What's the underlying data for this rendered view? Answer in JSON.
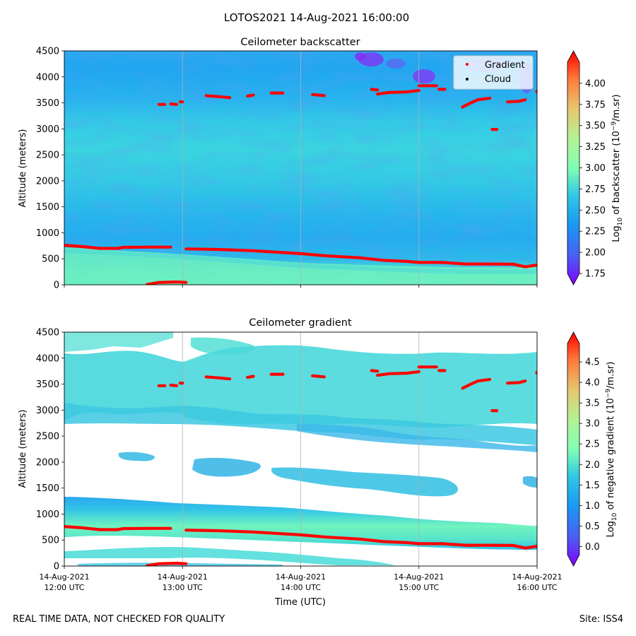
{
  "suptitle": "LOTOS2021 14-Aug-2021 16:00:00",
  "footer_left": "REAL TIME DATA, NOT CHECKED FOR QUALITY",
  "footer_right": "Site: ISS4",
  "chart_data": [
    {
      "type": "heatmap",
      "title": "Ceilometer backscatter",
      "xlabel": "",
      "ylabel": "Altitude (meters)",
      "ylim": [
        0,
        4500
      ],
      "yticks": [
        0,
        500,
        1000,
        1500,
        2000,
        2500,
        3000,
        3500,
        4000,
        4500
      ],
      "xlim_hours_utc": [
        12,
        16
      ],
      "xticks_hours_utc": [
        12,
        13,
        14,
        15,
        16
      ],
      "grid": "x",
      "legend": {
        "placement": "top-right",
        "entries": [
          "Gradient",
          "Cloud"
        ]
      },
      "colorbar": {
        "label_prefix": "Log",
        "label_sub": "10",
        "label_mid": " of backscatter (10",
        "label_sup": "−9",
        "label_suffix": "/m.sr)",
        "range": [
          1.75,
          4.25
        ],
        "ticks": [
          "1.75",
          "2.00",
          "2.25",
          "2.50",
          "2.75",
          "3.00",
          "3.25",
          "3.50",
          "3.75",
          "4.00"
        ],
        "extend": "both"
      }
    },
    {
      "type": "heatmap",
      "title": "Ceilometer gradient",
      "xlabel": "Time (UTC)",
      "ylabel": "Altitude (meters)",
      "ylim": [
        0,
        4500
      ],
      "yticks": [
        0,
        500,
        1000,
        1500,
        2000,
        2500,
        3000,
        3500,
        4000,
        4500
      ],
      "xlim_hours_utc": [
        12,
        16
      ],
      "xticks_hours_utc": [
        12,
        13,
        14,
        15,
        16
      ],
      "xtick_labels": [
        [
          "14-Aug-2021",
          "12:00 UTC"
        ],
        [
          "14-Aug-2021",
          "13:00 UTC"
        ],
        [
          "14-Aug-2021",
          "14:00 UTC"
        ],
        [
          "14-Aug-2021",
          "15:00 UTC"
        ],
        [
          "14-Aug-2021",
          "16:00 UTC"
        ]
      ],
      "grid": "x",
      "colorbar": {
        "label_prefix": "Log",
        "label_sub": "10",
        "label_mid": " of negative gradient (10",
        "label_sup": "−9",
        "label_suffix": "/m.sr)",
        "range": [
          -0.2,
          4.95
        ],
        "ticks": [
          "0.0",
          "0.5",
          "1.0",
          "1.5",
          "2.0",
          "2.5",
          "3.0",
          "3.5",
          "4.0",
          "4.5"
        ],
        "extend": "both"
      }
    }
  ],
  "gradient_series": {
    "name": "Gradient",
    "boundary_layer": [
      [
        12.0,
        760
      ],
      [
        12.15,
        735
      ],
      [
        12.3,
        700
      ],
      [
        12.45,
        700
      ],
      [
        12.5,
        720
      ],
      [
        12.7,
        725
      ],
      [
        12.9,
        725
      ]
    ],
    "boundary_layer_2": [
      [
        13.03,
        690
      ],
      [
        13.3,
        680
      ],
      [
        13.6,
        655
      ],
      [
        14.0,
        600
      ],
      [
        14.2,
        560
      ],
      [
        14.5,
        520
      ],
      [
        14.7,
        470
      ],
      [
        14.9,
        450
      ],
      [
        15.0,
        430
      ],
      [
        15.2,
        430
      ],
      [
        15.4,
        400
      ],
      [
        15.6,
        400
      ],
      [
        15.8,
        395
      ],
      [
        15.9,
        345
      ],
      [
        16.0,
        380
      ]
    ],
    "low_segment": [
      [
        12.7,
        5
      ],
      [
        12.8,
        45
      ],
      [
        12.95,
        55
      ],
      [
        13.03,
        45
      ]
    ],
    "upper_segments": [
      [
        [
          12.8,
          3470
        ],
        [
          12.85,
          3470
        ]
      ],
      [
        [
          12.9,
          3480
        ],
        [
          12.95,
          3470
        ]
      ],
      [
        [
          12.98,
          3520
        ],
        [
          13.0,
          3520
        ]
      ],
      [
        [
          13.2,
          3640
        ],
        [
          13.3,
          3620
        ],
        [
          13.4,
          3600
        ]
      ],
      [
        [
          13.55,
          3630
        ],
        [
          13.6,
          3650
        ]
      ],
      [
        [
          13.75,
          3690
        ],
        [
          13.85,
          3690
        ]
      ],
      [
        [
          14.1,
          3660
        ],
        [
          14.2,
          3640
        ]
      ],
      [
        [
          14.6,
          3760
        ],
        [
          14.65,
          3750
        ]
      ],
      [
        [
          14.65,
          3670
        ],
        [
          14.75,
          3700
        ],
        [
          14.9,
          3710
        ],
        [
          15.0,
          3740
        ]
      ],
      [
        [
          15.0,
          3830
        ],
        [
          15.15,
          3830
        ]
      ],
      [
        [
          15.17,
          3760
        ],
        [
          15.22,
          3760
        ]
      ],
      [
        [
          15.37,
          3420
        ],
        [
          15.45,
          3510
        ],
        [
          15.5,
          3560
        ],
        [
          15.6,
          3590
        ]
      ],
      [
        [
          15.62,
          2990
        ],
        [
          15.66,
          2990
        ]
      ],
      [
        [
          15.75,
          3520
        ],
        [
          15.85,
          3530
        ],
        [
          15.9,
          3560
        ]
      ],
      [
        [
          16.0,
          3720
        ]
      ]
    ]
  }
}
